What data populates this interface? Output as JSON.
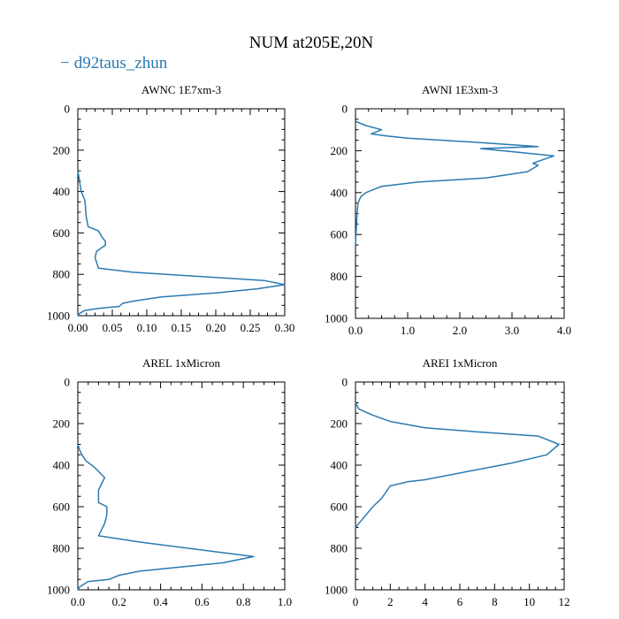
{
  "title": "NUM at205E,20N",
  "legend": {
    "dash": "−",
    "label": "d92taus_zhun",
    "color": "#2a7ab0"
  },
  "chart_data": [
    {
      "type": "line",
      "title": "AWNC  1E7xm-3",
      "xlim": [
        0,
        0.3
      ],
      "ylim": [
        1000,
        0
      ],
      "xticks": [
        0,
        0.05,
        0.1,
        0.15,
        0.2,
        0.25,
        0.3
      ],
      "xtick_labels": [
        "0.00",
        "0.05",
        "0.10",
        "0.15",
        "0.20",
        "0.25",
        "0.30"
      ],
      "yticks": [
        0,
        200,
        400,
        600,
        800,
        1000
      ],
      "ytick_labels": [
        "0",
        "200",
        "400",
        "600",
        "800",
        "1000"
      ],
      "series": [
        {
          "name": "d92taus_zhun",
          "x": [
            0,
            0.001,
            0.003,
            0.005,
            0.01,
            0.011,
            0.012,
            0.015,
            0.03,
            0.035,
            0.04,
            0.04,
            0.035,
            0.027,
            0.025,
            0.028,
            0.03,
            0.08,
            0.27,
            0.3,
            0.26,
            0.2,
            0.12,
            0.08,
            0.065,
            0.06,
            0.03,
            0.01,
            0.002,
            0
          ],
          "y": [
            300,
            320,
            360,
            400,
            440,
            470,
            520,
            570,
            590,
            620,
            640,
            660,
            670,
            690,
            720,
            750,
            770,
            790,
            830,
            850,
            870,
            890,
            910,
            930,
            940,
            955,
            965,
            975,
            990,
            1000
          ]
        }
      ]
    },
    {
      "type": "line",
      "title": "AWNI  1E3xm-3",
      "xlim": [
        0,
        4
      ],
      "ylim": [
        1000,
        0
      ],
      "xticks": [
        0,
        1,
        2,
        3,
        4
      ],
      "xtick_labels": [
        "0.0",
        "1.0",
        "2.0",
        "3.0",
        "4.0"
      ],
      "yticks": [
        0,
        200,
        400,
        600,
        800,
        1000
      ],
      "ytick_labels": [
        "0",
        "200",
        "400",
        "600",
        "800",
        "1000"
      ],
      "series": [
        {
          "name": "d92taus_zhun",
          "x": [
            0,
            0.2,
            0.5,
            0.3,
            0.6,
            1.0,
            2.3,
            3.5,
            2.4,
            3.8,
            3.4,
            3.5,
            3.3,
            2.5,
            1.2,
            0.5,
            0.2,
            0.1,
            0.05,
            0.03,
            0.02,
            0.01,
            0
          ],
          "y": [
            60,
            80,
            100,
            120,
            130,
            140,
            160,
            180,
            190,
            225,
            260,
            270,
            300,
            330,
            350,
            370,
            400,
            420,
            450,
            500,
            550,
            600,
            650
          ]
        }
      ]
    },
    {
      "type": "line",
      "title": "AREL  1xMicron",
      "xlim": [
        0,
        1
      ],
      "ylim": [
        1000,
        0
      ],
      "xticks": [
        0,
        0.2,
        0.4,
        0.6,
        0.8,
        1.0
      ],
      "xtick_labels": [
        "0.0",
        "0.2",
        "0.4",
        "0.6",
        "0.8",
        "1.0"
      ],
      "yticks": [
        0,
        200,
        400,
        600,
        800,
        1000
      ],
      "ytick_labels": [
        "0",
        "200",
        "400",
        "600",
        "800",
        "1000"
      ],
      "series": [
        {
          "name": "d92taus_zhun",
          "x": [
            0,
            0.01,
            0.02,
            0.04,
            0.08,
            0.13,
            0.11,
            0.1,
            0.1,
            0.1,
            0.14,
            0.14,
            0.13,
            0.1,
            0.3,
            0.85,
            0.7,
            0.5,
            0.3,
            0.2,
            0.15,
            0.05,
            0.01,
            0
          ],
          "y": [
            300,
            330,
            350,
            380,
            410,
            460,
            500,
            520,
            550,
            580,
            600,
            640,
            680,
            740,
            770,
            840,
            870,
            890,
            910,
            930,
            950,
            960,
            985,
            1000
          ]
        }
      ]
    },
    {
      "type": "line",
      "title": "AREI  1xMicron",
      "xlim": [
        0,
        12
      ],
      "ylim": [
        1000,
        0
      ],
      "xticks": [
        0,
        2,
        4,
        6,
        8,
        10,
        12
      ],
      "xtick_labels": [
        "0",
        "2",
        "4",
        "6",
        "8",
        "10",
        "12"
      ],
      "yticks": [
        0,
        200,
        400,
        600,
        800,
        1000
      ],
      "ytick_labels": [
        "0",
        "200",
        "400",
        "600",
        "800",
        "1000"
      ],
      "series": [
        {
          "name": "d92taus_zhun",
          "x": [
            0,
            0.2,
            1,
            2,
            4,
            7,
            10.5,
            11.7,
            11,
            9,
            6.5,
            4,
            3,
            2,
            1.5,
            1,
            0.5,
            0.1,
            0
          ],
          "y": [
            100,
            130,
            160,
            190,
            220,
            240,
            260,
            300,
            350,
            390,
            430,
            470,
            480,
            500,
            560,
            600,
            650,
            690,
            700
          ]
        }
      ]
    }
  ]
}
